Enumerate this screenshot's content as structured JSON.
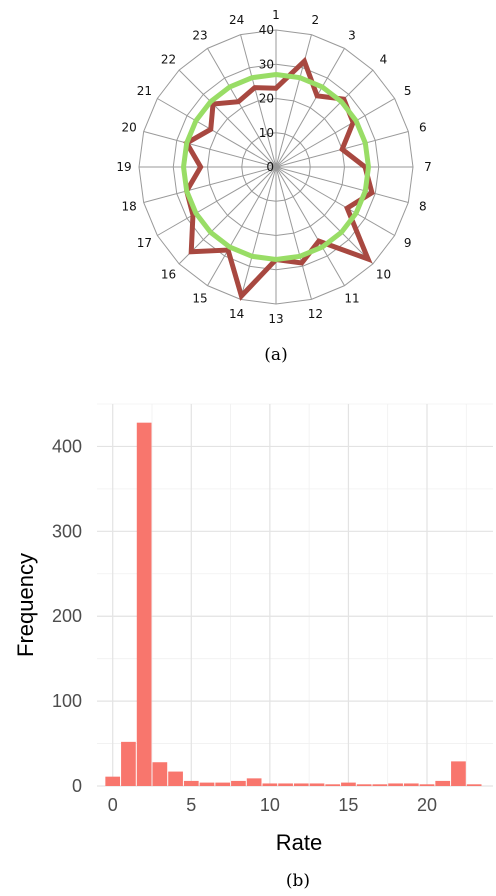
{
  "chart_data": [
    {
      "type": "radar",
      "caption": "(a)",
      "categories": [
        "1",
        "2",
        "3",
        "4",
        "5",
        "6",
        "7",
        "8",
        "9",
        "10",
        "11",
        "12",
        "13",
        "14",
        "15",
        "16",
        "17",
        "18",
        "19",
        "20",
        "21",
        "22",
        "23",
        "24"
      ],
      "rlim": [
        0,
        40
      ],
      "rings": [
        0,
        10,
        20,
        30,
        40
      ],
      "grid": true,
      "series": [
        {
          "values": [
            23,
            32,
            24,
            28,
            26,
            20,
            26,
            29,
            24,
            38,
            25,
            29,
            27,
            39,
            28,
            35,
            28,
            27,
            22,
            27,
            22,
            26,
            22,
            24
          ],
          "color": "#a84840"
        },
        {
          "values": [
            27,
            27,
            27,
            27,
            27,
            27,
            27,
            27,
            27,
            27,
            27,
            27,
            27,
            27,
            27,
            27,
            27,
            27,
            27,
            27,
            27,
            27,
            27,
            27
          ],
          "color": "#99dd66"
        }
      ]
    },
    {
      "type": "bar",
      "caption": "(b)",
      "xlabel": "Rate",
      "ylabel": "Frequency",
      "xlim": [
        -1,
        24.2
      ],
      "ylim": [
        0,
        450
      ],
      "xticks": [
        0,
        5,
        10,
        15,
        20
      ],
      "yticks": [
        0,
        100,
        200,
        300,
        400
      ],
      "grid": true,
      "bar_color": "#f8766d",
      "bin_width": 1,
      "bin_centers": [
        0,
        1,
        2,
        3,
        4,
        5,
        6,
        7,
        8,
        9,
        10,
        11,
        12,
        13,
        14,
        15,
        16,
        17,
        18,
        19,
        20,
        21,
        22,
        23
      ],
      "values": [
        11,
        52,
        428,
        28,
        17,
        6,
        4,
        4,
        6,
        9,
        3,
        3,
        3,
        3,
        2,
        4,
        2,
        2,
        3,
        3,
        2,
        6,
        29,
        2
      ]
    }
  ]
}
